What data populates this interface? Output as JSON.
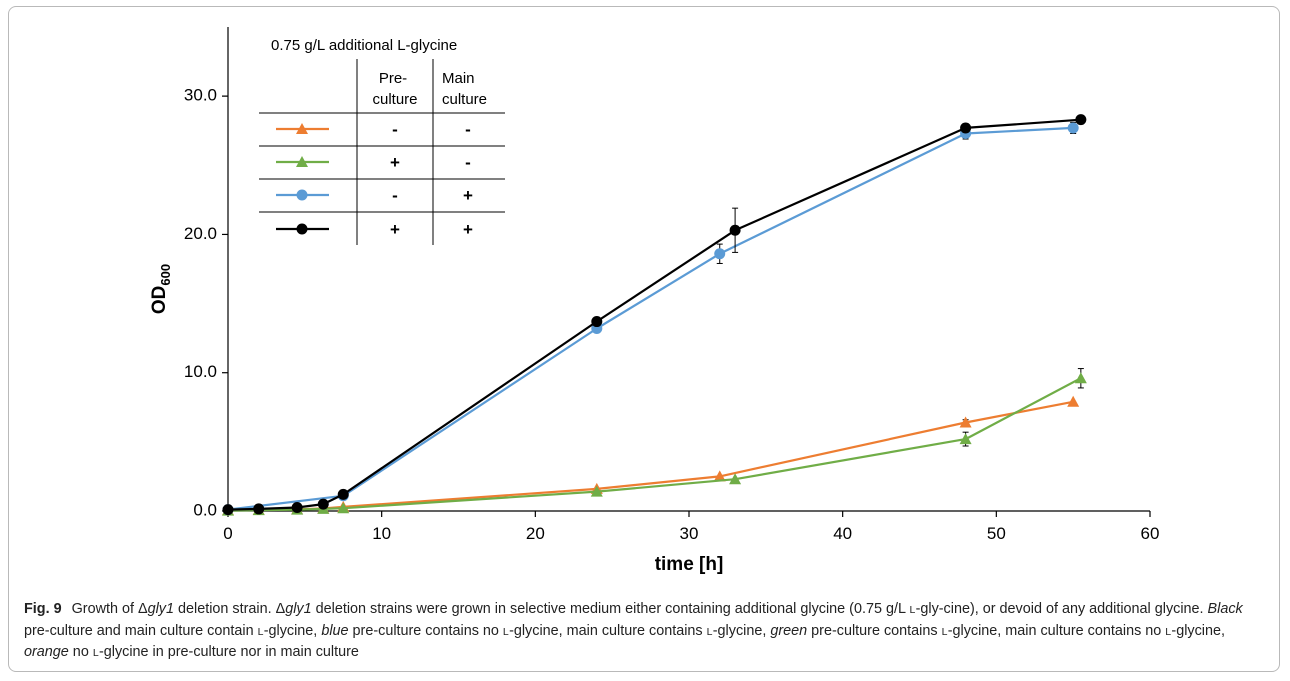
{
  "chart_data": {
    "type": "line",
    "xlabel": "time [h]",
    "ylabel_main": "OD",
    "ylabel_sub": "600",
    "xlim": [
      0,
      60
    ],
    "ylim": [
      0,
      35
    ],
    "x_ticks": [
      0,
      10,
      20,
      30,
      40,
      50,
      60
    ],
    "x_tick_labels": [
      "0",
      "10",
      "20",
      "30",
      "40",
      "50",
      "60"
    ],
    "y_ticks": [
      0,
      10,
      20,
      30
    ],
    "y_tick_labels": [
      "0.0",
      "10.0",
      "20.0",
      "30.0"
    ],
    "grid": false,
    "legend_placement": "top-left",
    "series": [
      {
        "color": "#ED7D31",
        "marker": "triangle",
        "pre_culture": "-",
        "main_culture": "-",
        "x": [
          0,
          2,
          4.5,
          6.2,
          7.5,
          24,
          32,
          48,
          55
        ],
        "y": [
          0.05,
          0.08,
          0.12,
          0.18,
          0.3,
          1.6,
          2.5,
          6.4,
          7.9
        ],
        "err": [
          0,
          0,
          0,
          0,
          0,
          0,
          0,
          0.2,
          0
        ]
      },
      {
        "color": "#70AD47",
        "marker": "triangle",
        "pre_culture": "+",
        "main_culture": "-",
        "x": [
          0,
          2,
          4.5,
          6.2,
          7.5,
          24,
          33,
          48,
          55.5
        ],
        "y": [
          0.03,
          0.06,
          0.1,
          0.15,
          0.2,
          1.4,
          2.3,
          5.2,
          9.6
        ],
        "err": [
          0,
          0,
          0,
          0,
          0,
          0,
          0,
          0.5,
          0.7
        ]
      },
      {
        "color": "#5B9BD5",
        "marker": "circle",
        "pre_culture": "-",
        "main_culture": "+",
        "x": [
          0,
          7.5,
          24,
          32,
          48,
          55
        ],
        "y": [
          0.1,
          1.1,
          13.2,
          18.6,
          27.3,
          27.7
        ],
        "err": [
          0,
          0,
          0,
          0.7,
          0.4,
          0.4
        ]
      },
      {
        "color": "#000000",
        "marker": "circle",
        "pre_culture": "+",
        "main_culture": "+",
        "x": [
          0,
          2,
          4.5,
          6.2,
          7.5,
          24,
          33,
          48,
          55.5
        ],
        "y": [
          0.1,
          0.15,
          0.25,
          0.5,
          1.2,
          13.7,
          20.3,
          27.7,
          28.3
        ],
        "err": [
          0,
          0,
          0,
          0,
          0,
          0,
          1.6,
          0.3,
          0.3
        ]
      }
    ],
    "legend": {
      "title": "0.75 g/L additional L-glycine",
      "col1_line1": "Pre-",
      "col1_line2": "culture",
      "col2_line1": "Main",
      "col2_line2": "culture"
    }
  },
  "caption": {
    "label": "Fig. 9",
    "parts": [
      {
        "t": "Growth of Δ",
        "s": "n"
      },
      {
        "t": "gly1",
        "s": "i"
      },
      {
        "t": " deletion strain. Δ",
        "s": "n"
      },
      {
        "t": "gly1",
        "s": "i"
      },
      {
        "t": " deletion strains were grown in selective medium either containing additional glycine (0.75 g/L ",
        "s": "n"
      },
      {
        "t": "l",
        "s": "sc"
      },
      {
        "t": "-gly-cine), or devoid of any additional glycine. ",
        "s": "n"
      },
      {
        "t": "Black",
        "s": "i"
      },
      {
        "t": " pre-culture and main culture contain ",
        "s": "n"
      },
      {
        "t": "l",
        "s": "sc"
      },
      {
        "t": "-glycine, ",
        "s": "n"
      },
      {
        "t": "blue",
        "s": "i"
      },
      {
        "t": " pre-culture contains no ",
        "s": "n"
      },
      {
        "t": "l",
        "s": "sc"
      },
      {
        "t": "-glycine, main culture contains ",
        "s": "n"
      },
      {
        "t": "l",
        "s": "sc"
      },
      {
        "t": "-glycine, ",
        "s": "n"
      },
      {
        "t": "green",
        "s": "i"
      },
      {
        "t": " pre-culture contains ",
        "s": "n"
      },
      {
        "t": "l",
        "s": "sc"
      },
      {
        "t": "-glycine, main culture contains no ",
        "s": "n"
      },
      {
        "t": "l",
        "s": "sc"
      },
      {
        "t": "-glycine, ",
        "s": "n"
      },
      {
        "t": "orange",
        "s": "i"
      },
      {
        "t": " no ",
        "s": "n"
      },
      {
        "t": "l",
        "s": "sc"
      },
      {
        "t": "-glycine in pre-culture nor in main culture",
        "s": "n"
      }
    ]
  }
}
